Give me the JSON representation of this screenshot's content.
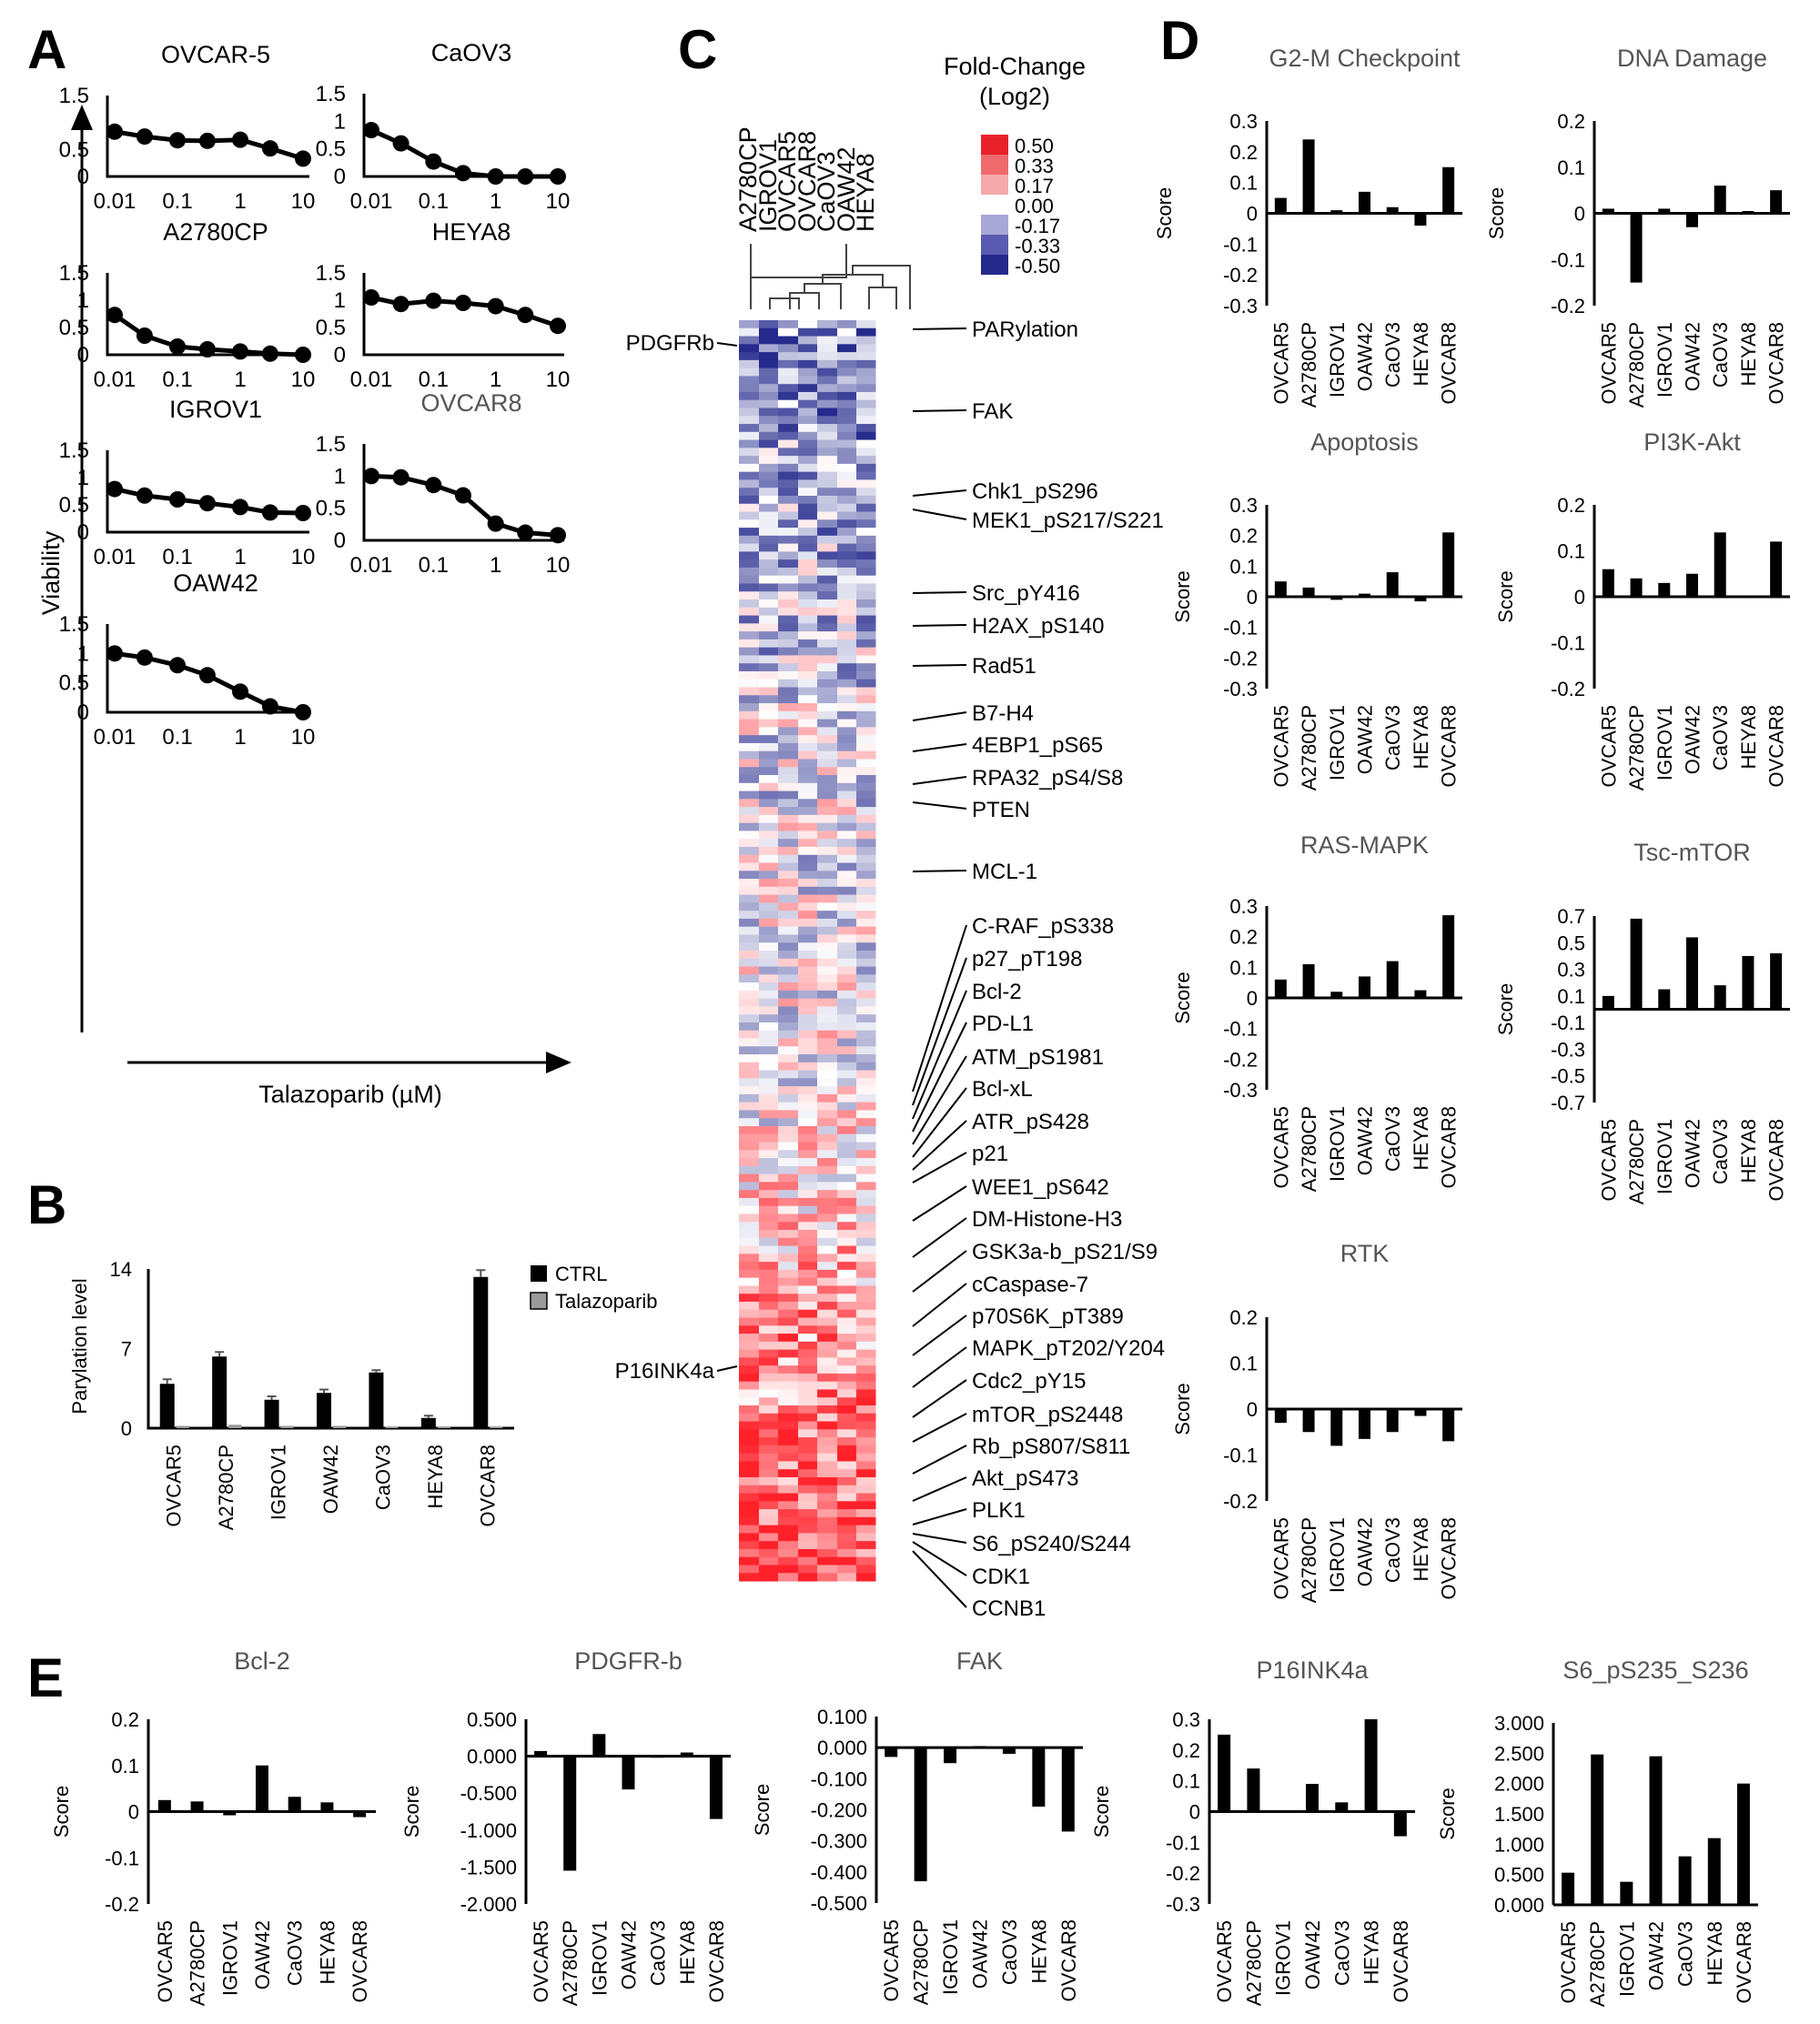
{
  "figure": {
    "panel_labels": [
      "A",
      "B",
      "C",
      "D",
      "E"
    ]
  },
  "chart_data": [
    {
      "id": "A",
      "type": "line",
      "ylabel": "Viability",
      "xlabel": "Talazoparib (µM)",
      "x_ticks": [
        "0.01",
        "0.1",
        "1",
        "10"
      ],
      "y_ticks": [
        "0",
        "0.5",
        "1",
        "1.5"
      ],
      "ylim": [
        0,
        1.5
      ],
      "xscale": "log",
      "xlim": [
        0.01,
        10
      ],
      "x": [
        0.01,
        0.03,
        0.1,
        0.3,
        1,
        3,
        10
      ],
      "series": [
        {
          "name": "OVCAR-5",
          "values": [
            0.83,
            0.74,
            0.67,
            0.66,
            0.68,
            0.52,
            0.33
          ]
        },
        {
          "name": "CaOV3",
          "values": [
            0.84,
            0.6,
            0.27,
            0.06,
            0.0,
            0.0,
            0.0
          ]
        },
        {
          "name": "A2780CP",
          "values": [
            0.73,
            0.35,
            0.15,
            0.1,
            0.06,
            0.02,
            0.0
          ]
        },
        {
          "name": "HEYA8",
          "values": [
            1.05,
            0.93,
            0.99,
            0.95,
            0.89,
            0.73,
            0.53
          ]
        },
        {
          "name": "IGROV1",
          "values": [
            0.79,
            0.67,
            0.6,
            0.53,
            0.46,
            0.36,
            0.35
          ]
        },
        {
          "name": "OVCAR8",
          "values": [
            1.0,
            0.98,
            0.86,
            0.7,
            0.26,
            0.12,
            0.08
          ]
        },
        {
          "name": "OAW42",
          "values": [
            1.0,
            0.93,
            0.8,
            0.63,
            0.35,
            0.1,
            0.0
          ]
        }
      ]
    },
    {
      "id": "B",
      "type": "bar",
      "ylabel": "Parylation level",
      "categories": [
        "OVCAR5",
        "A2780CP",
        "IGROV1",
        "OAW42",
        "CaOV3",
        "HEYA8",
        "OVCAR8"
      ],
      "y_ticks": [
        "0",
        "7",
        "14"
      ],
      "ylim": [
        0,
        14
      ],
      "series": [
        {
          "name": "CTRL",
          "values": [
            3.9,
            6.3,
            2.5,
            3.1,
            4.9,
            0.9,
            13.3
          ],
          "errors": [
            0.4,
            0.4,
            0.3,
            0.3,
            0.2,
            0.2,
            0.6
          ]
        },
        {
          "name": "Talazoparib",
          "values": [
            0.2,
            0.3,
            0.2,
            0.2,
            0.1,
            0.15,
            0.15
          ]
        }
      ]
    },
    {
      "id": "C",
      "type": "heatmap",
      "title": "Fold-Change",
      "title2": "(Log2)",
      "columns": [
        "A2780CP",
        "IGROV1",
        "OVCAR5",
        "OVCAR8",
        "CaOV3",
        "OAW42",
        "HEYA8"
      ],
      "scale_labels": [
        "0.50",
        "0.33",
        "0.17",
        "0.00",
        "-0.17",
        "-0.33",
        "-0.50"
      ],
      "scale_colors": [
        "#e8212a",
        "#ee6a6c",
        "#f4aaaa",
        "#ffffff",
        "#a8a8d8",
        "#5a5ab0",
        "#262a8c"
      ],
      "left_labels": [
        "PDGFRb",
        "P16INK4a"
      ],
      "right_labels": [
        "PARylation",
        "FAK",
        "Chk1_pS296",
        "MEK1_pS217/S221",
        "Src_pY416",
        "H2AX_pS140",
        "Rad51",
        "B7-H4",
        "4EBP1_pS65",
        "RPA32_pS4/S8",
        "PTEN",
        "MCL-1",
        "C-RAF_pS338",
        "p27_pT198",
        "Bcl-2",
        "PD-L1",
        "ATM_pS1981",
        "Bcl-xL",
        "ATR_pS428",
        "p21",
        "WEE1_pS642",
        "DM-Histone-H3",
        "GSK3a-b_pS21/S9",
        "cCaspase-7",
        "p70S6K_pT389",
        "MAPK_pT202/Y204",
        "Cdc2_pY15",
        "mTOR_pS2448",
        "Rb_pS807/S811",
        "Akt_pS473",
        "PLK1",
        "S6_pS240/S244",
        "CDK1",
        "CCNB1"
      ],
      "highlight_color": "#e8212a"
    },
    {
      "id": "D1",
      "type": "bar",
      "title": "G2-M Checkpoint",
      "ylabel": "Score",
      "categories": [
        "OVCAR5",
        "A2780CP",
        "IGROV1",
        "OAW42",
        "CaOV3",
        "HEYA8",
        "OVCAR8"
      ],
      "values": [
        0.05,
        0.24,
        0.01,
        0.07,
        0.02,
        -0.04,
        0.15
      ],
      "y_ticks": [
        "0.3",
        "0.2",
        "0.1",
        "0",
        "-0.1",
        "-0.2",
        "-0.3"
      ],
      "ylim": [
        -0.3,
        0.3
      ]
    },
    {
      "id": "D2",
      "type": "bar",
      "title": "DNA Damage",
      "ylabel": "Score",
      "categories": [
        "OVCAR5",
        "A2780CP",
        "IGROV1",
        "OAW42",
        "CaOV3",
        "HEYA8",
        "OVCAR8"
      ],
      "values": [
        0.01,
        -0.15,
        0.01,
        -0.03,
        0.06,
        0.005,
        0.05
      ],
      "y_ticks": [
        "0.2",
        "0.1",
        "0",
        "-0.1",
        "-0.2"
      ],
      "ylim": [
        -0.2,
        0.2
      ]
    },
    {
      "id": "D3",
      "type": "bar",
      "title": "Apoptosis",
      "ylabel": "Score",
      "categories": [
        "OVCAR5",
        "A2780CP",
        "IGROV1",
        "OAW42",
        "CaOV3",
        "HEYA8",
        "OVCAR8"
      ],
      "values": [
        0.05,
        0.03,
        -0.01,
        0.01,
        0.08,
        -0.015,
        0.21
      ],
      "y_ticks": [
        "0.3",
        "0.2",
        "0.1",
        "0",
        "-0.1",
        "-0.2",
        "-0.3"
      ],
      "ylim": [
        -0.3,
        0.3
      ]
    },
    {
      "id": "D4",
      "type": "bar",
      "title": "PI3K-Akt",
      "ylabel": "Score",
      "categories": [
        "OVCAR5",
        "A2780CP",
        "IGROV1",
        "OAW42",
        "CaOV3",
        "HEYA8",
        "OVCAR8"
      ],
      "values": [
        0.06,
        0.04,
        0.03,
        0.05,
        0.14,
        -0.003,
        0.12
      ],
      "y_ticks": [
        "0.2",
        "0.1",
        "0",
        "-0.1",
        "-0.2"
      ],
      "ylim": [
        -0.2,
        0.2
      ]
    },
    {
      "id": "D5",
      "type": "bar",
      "title": "RAS-MAPK",
      "ylabel": "Score",
      "categories": [
        "OVCAR5",
        "A2780CP",
        "IGROV1",
        "OAW42",
        "CaOV3",
        "HEYA8",
        "OVCAR8"
      ],
      "values": [
        0.06,
        0.11,
        0.02,
        0.07,
        0.12,
        0.025,
        0.27
      ],
      "y_ticks": [
        "0.3",
        "0.2",
        "0.1",
        "0",
        "-0.1",
        "-0.2",
        "-0.3"
      ],
      "ylim": [
        -0.3,
        0.3
      ]
    },
    {
      "id": "D6",
      "type": "bar",
      "title": "Tsc-mTOR",
      "ylabel": "Score",
      "categories": [
        "OVCAR5",
        "A2780CP",
        "IGROV1",
        "OAW42",
        "CaOV3",
        "HEYA8",
        "OVCAR8"
      ],
      "values": [
        0.1,
        0.68,
        0.15,
        0.54,
        0.18,
        0.4,
        0.42
      ],
      "y_ticks": [
        "0.7",
        "0.5",
        "0.3",
        "0.1",
        "-0.1",
        "-0.3",
        "-0.5",
        "-0.7"
      ],
      "ylim": [
        -0.7,
        0.7
      ]
    },
    {
      "id": "D7",
      "type": "bar",
      "title": "RTK",
      "ylabel": "Score",
      "categories": [
        "OVCAR5",
        "A2780CP",
        "IGROV1",
        "OAW42",
        "CaOV3",
        "HEYA8",
        "OVCAR8"
      ],
      "values": [
        -0.03,
        -0.05,
        -0.08,
        -0.065,
        -0.05,
        -0.015,
        -0.07
      ],
      "y_ticks": [
        "0.2",
        "0.1",
        "0",
        "-0.1",
        "-0.2"
      ],
      "ylim": [
        -0.2,
        0.2
      ]
    },
    {
      "id": "E1",
      "type": "bar",
      "title": "Bcl-2",
      "ylabel": "Score",
      "categories": [
        "OVCAR5",
        "A2780CP",
        "IGROV1",
        "OAW42",
        "CaOV3",
        "HEYA8",
        "OVCAR8"
      ],
      "values": [
        0.025,
        0.022,
        -0.008,
        0.1,
        0.032,
        0.02,
        -0.012
      ],
      "y_ticks": [
        "0.2",
        "0.1",
        "0",
        "-0.1",
        "-0.2"
      ],
      "ylim": [
        -0.2,
        0.2
      ]
    },
    {
      "id": "E2",
      "type": "bar",
      "title": "PDGFR-b",
      "ylabel": "Score",
      "categories": [
        "OVCAR5",
        "A2780CP",
        "IGROV1",
        "OAW42",
        "CaOV3",
        "HEYA8",
        "OVCAR8"
      ],
      "values": [
        0.07,
        -1.55,
        0.3,
        -0.45,
        -0.02,
        0.05,
        -0.85
      ],
      "y_ticks": [
        "0.500",
        "0.000",
        "-0.500",
        "-1.000",
        "-1.500",
        "-2.000"
      ],
      "ylim": [
        -2.0,
        0.5
      ]
    },
    {
      "id": "E3",
      "type": "bar",
      "title": "FAK",
      "ylabel": "Score",
      "categories": [
        "OVCAR5",
        "A2780CP",
        "IGROV1",
        "OAW42",
        "CaOV3",
        "HEYA8",
        "OVCAR8"
      ],
      "values": [
        -0.03,
        -0.43,
        -0.05,
        0.005,
        -0.02,
        -0.19,
        -0.27
      ],
      "y_ticks": [
        "0.100",
        "0.000",
        "-0.100",
        "-0.200",
        "-0.300",
        "-0.400",
        "-0.500"
      ],
      "ylim": [
        -0.5,
        0.1
      ]
    },
    {
      "id": "E4",
      "type": "bar",
      "title": "P16INK4a",
      "ylabel": "Score",
      "categories": [
        "OVCAR5",
        "A2780CP",
        "IGROV1",
        "OAW42",
        "CaOV3",
        "HEYA8",
        "OVCAR8"
      ],
      "values": [
        0.25,
        0.14,
        0.003,
        0.09,
        0.03,
        0.3,
        -0.08
      ],
      "y_ticks": [
        "0.3",
        "0.2",
        "0.1",
        "0",
        "-0.1",
        "-0.2",
        "-0.3"
      ],
      "ylim": [
        -0.3,
        0.3
      ]
    },
    {
      "id": "E5",
      "type": "bar",
      "title": "S6_pS235_S236",
      "ylabel": "Score",
      "categories": [
        "OVCAR5",
        "A2780CP",
        "IGROV1",
        "OAW42",
        "CaOV3",
        "HEYA8",
        "OVCAR8"
      ],
      "values": [
        0.53,
        2.48,
        0.38,
        2.45,
        0.8,
        1.1,
        2.0
      ],
      "y_ticks": [
        "3.000",
        "2.500",
        "2.000",
        "1.500",
        "1.000",
        "0.500",
        "0.000"
      ],
      "ylim": [
        0,
        3.0
      ]
    }
  ]
}
